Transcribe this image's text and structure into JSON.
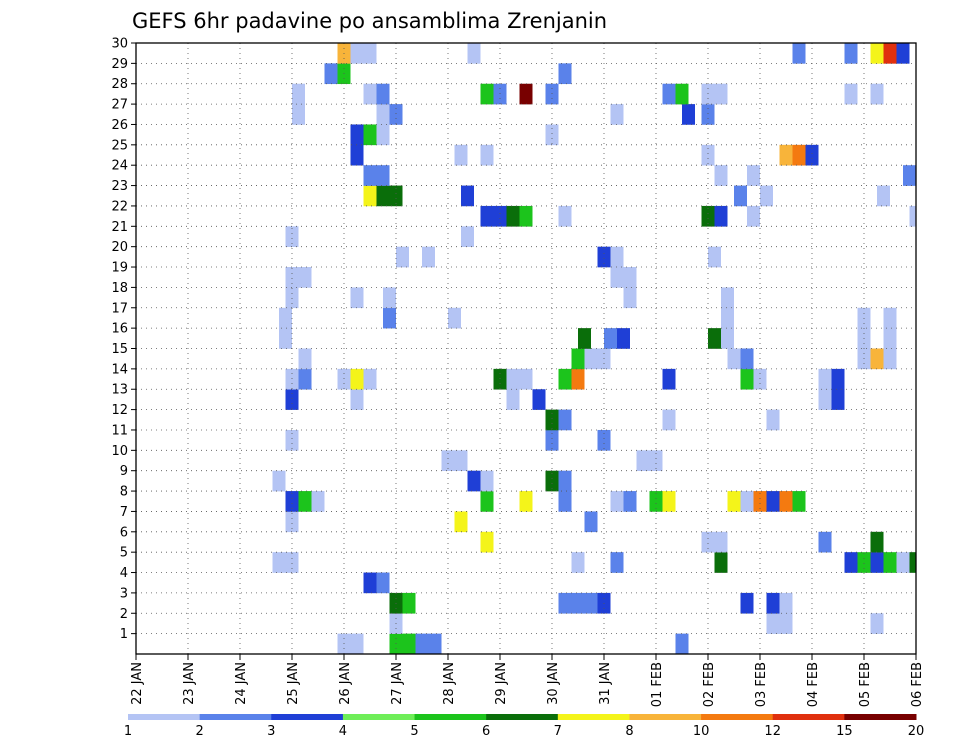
{
  "chart_data": {
    "type": "heatmap",
    "title": "GEFS 6hr padavine po ansamblima Zrenjanin",
    "x_tick_labels": [
      "22 JAN",
      "23 JAN",
      "24 JAN",
      "25 JAN",
      "26 JAN",
      "27 JAN",
      "28 JAN",
      "29 JAN",
      "30 JAN",
      "31 JAN",
      "01 FEB",
      "02 FEB",
      "03 FEB",
      "04 FEB",
      "05 FEB",
      "06 FEB"
    ],
    "y_tick_labels": [
      "1",
      "2",
      "3",
      "4",
      "5",
      "6",
      "7",
      "8",
      "9",
      "10",
      "11",
      "12",
      "13",
      "14",
      "15",
      "16",
      "17",
      "18",
      "19",
      "20",
      "21",
      "22",
      "23",
      "24",
      "25",
      "26",
      "27",
      "28",
      "29",
      "30"
    ],
    "x_unit": "6-hour step from 22 JAN 00Z",
    "y_unit": "ensemble member",
    "xlim": [
      0,
      60
    ],
    "ylim": [
      0,
      30
    ],
    "grid": true,
    "colorbar": {
      "labels": [
        "1",
        "2",
        "3",
        "4",
        "5",
        "6",
        "7",
        "8",
        "10",
        "12",
        "15",
        "20"
      ],
      "colors": [
        "#b4c4f4",
        "#5a82ea",
        "#1f3fd6",
        "#6eee58",
        "#1cc41c",
        "#0a6e0a",
        "#f4f41a",
        "#f8b43a",
        "#f47a10",
        "#e0300e",
        "#780000"
      ]
    },
    "cells": [
      {
        "x": 15.5,
        "y": 0,
        "c": 1
      },
      {
        "x": 16.5,
        "y": 0,
        "c": 1
      },
      {
        "x": 19.5,
        "y": 0,
        "c": 5
      },
      {
        "x": 20.5,
        "y": 0,
        "c": 5
      },
      {
        "x": 21.5,
        "y": 0,
        "c": 2
      },
      {
        "x": 22.5,
        "y": 0,
        "c": 2
      },
      {
        "x": 41.5,
        "y": 0,
        "c": 2
      },
      {
        "x": 19.5,
        "y": 1,
        "c": 1
      },
      {
        "x": 48.5,
        "y": 1,
        "c": 1
      },
      {
        "x": 56.5,
        "y": 1,
        "c": 1
      },
      {
        "x": 49.5,
        "y": 1,
        "c": 1
      },
      {
        "x": 19.5,
        "y": 2,
        "c": 6
      },
      {
        "x": 20.5,
        "y": 2,
        "c": 5
      },
      {
        "x": 32.5,
        "y": 2,
        "c": 2
      },
      {
        "x": 33.5,
        "y": 2,
        "c": 2
      },
      {
        "x": 34.5,
        "y": 2,
        "c": 2
      },
      {
        "x": 35.5,
        "y": 2,
        "c": 3
      },
      {
        "x": 46.5,
        "y": 2,
        "c": 3
      },
      {
        "x": 48.5,
        "y": 2,
        "c": 3
      },
      {
        "x": 49.5,
        "y": 2,
        "c": 1
      },
      {
        "x": 17.5,
        "y": 3,
        "c": 3
      },
      {
        "x": 18.5,
        "y": 3,
        "c": 2
      },
      {
        "x": 10.5,
        "y": 4,
        "c": 1
      },
      {
        "x": 11.5,
        "y": 4,
        "c": 1
      },
      {
        "x": 33.5,
        "y": 4,
        "c": 1
      },
      {
        "x": 36.5,
        "y": 4,
        "c": 2
      },
      {
        "x": 44.5,
        "y": 4,
        "c": 6
      },
      {
        "x": 54.5,
        "y": 4,
        "c": 3
      },
      {
        "x": 55.5,
        "y": 4,
        "c": 5
      },
      {
        "x": 56.5,
        "y": 4,
        "c": 3
      },
      {
        "x": 57.5,
        "y": 4,
        "c": 5
      },
      {
        "x": 58.5,
        "y": 4,
        "c": 1
      },
      {
        "x": 59.5,
        "y": 4,
        "c": 6
      },
      {
        "x": 26.5,
        "y": 5,
        "c": 7
      },
      {
        "x": 43.5,
        "y": 5,
        "c": 1
      },
      {
        "x": 44.5,
        "y": 5,
        "c": 1
      },
      {
        "x": 52.5,
        "y": 5,
        "c": 2
      },
      {
        "x": 56.5,
        "y": 5,
        "c": 6
      },
      {
        "x": 11.5,
        "y": 6,
        "c": 1
      },
      {
        "x": 24.5,
        "y": 6,
        "c": 7
      },
      {
        "x": 34.5,
        "y": 6,
        "c": 2
      },
      {
        "x": 11.5,
        "y": 7,
        "c": 3
      },
      {
        "x": 12.5,
        "y": 7,
        "c": 5
      },
      {
        "x": 13.5,
        "y": 7,
        "c": 1
      },
      {
        "x": 26.5,
        "y": 7,
        "c": 5
      },
      {
        "x": 29.5,
        "y": 7,
        "c": 7
      },
      {
        "x": 32.5,
        "y": 7,
        "c": 2
      },
      {
        "x": 36.5,
        "y": 7,
        "c": 1
      },
      {
        "x": 37.5,
        "y": 7,
        "c": 2
      },
      {
        "x": 39.5,
        "y": 7,
        "c": 5
      },
      {
        "x": 40.5,
        "y": 7,
        "c": 7
      },
      {
        "x": 45.5,
        "y": 7,
        "c": 7
      },
      {
        "x": 46.5,
        "y": 7,
        "c": 1
      },
      {
        "x": 47.5,
        "y": 7,
        "c": 9
      },
      {
        "x": 48.5,
        "y": 7,
        "c": 3
      },
      {
        "x": 49.5,
        "y": 7,
        "c": 9
      },
      {
        "x": 50.5,
        "y": 7,
        "c": 5
      },
      {
        "x": 10.5,
        "y": 8,
        "c": 1
      },
      {
        "x": 25.5,
        "y": 8,
        "c": 3
      },
      {
        "x": 26.5,
        "y": 8,
        "c": 1
      },
      {
        "x": 31.5,
        "y": 8,
        "c": 6
      },
      {
        "x": 32.5,
        "y": 8,
        "c": 2
      },
      {
        "x": 23.5,
        "y": 9,
        "c": 1
      },
      {
        "x": 24.5,
        "y": 9,
        "c": 1
      },
      {
        "x": 38.5,
        "y": 9,
        "c": 1
      },
      {
        "x": 39.5,
        "y": 9,
        "c": 1
      },
      {
        "x": 11.5,
        "y": 10,
        "c": 1
      },
      {
        "x": 31.5,
        "y": 10,
        "c": 2
      },
      {
        "x": 35.5,
        "y": 10,
        "c": 2
      },
      {
        "x": 31.5,
        "y": 11,
        "c": 6
      },
      {
        "x": 32.5,
        "y": 11,
        "c": 2
      },
      {
        "x": 40.5,
        "y": 11,
        "c": 1
      },
      {
        "x": 48.5,
        "y": 11,
        "c": 1
      },
      {
        "x": 11.5,
        "y": 12,
        "c": 3
      },
      {
        "x": 16.5,
        "y": 12,
        "c": 1
      },
      {
        "x": 28.5,
        "y": 12,
        "c": 1
      },
      {
        "x": 30.5,
        "y": 12,
        "c": 3
      },
      {
        "x": 52.5,
        "y": 12,
        "c": 1
      },
      {
        "x": 53.5,
        "y": 12,
        "c": 3
      },
      {
        "x": 11.5,
        "y": 13,
        "c": 1
      },
      {
        "x": 12.5,
        "y": 13,
        "c": 2
      },
      {
        "x": 15.5,
        "y": 13,
        "c": 1
      },
      {
        "x": 16.5,
        "y": 13,
        "c": 7
      },
      {
        "x": 17.5,
        "y": 13,
        "c": 1
      },
      {
        "x": 27.5,
        "y": 13,
        "c": 6
      },
      {
        "x": 28.5,
        "y": 13,
        "c": 1
      },
      {
        "x": 29.5,
        "y": 13,
        "c": 1
      },
      {
        "x": 32.5,
        "y": 13,
        "c": 5
      },
      {
        "x": 33.5,
        "y": 13,
        "c": 9
      },
      {
        "x": 40.5,
        "y": 13,
        "c": 3
      },
      {
        "x": 46.5,
        "y": 13,
        "c": 5
      },
      {
        "x": 47.5,
        "y": 13,
        "c": 1
      },
      {
        "x": 52.5,
        "y": 13,
        "c": 1
      },
      {
        "x": 53.5,
        "y": 13,
        "c": 3
      },
      {
        "x": 12.5,
        "y": 14,
        "c": 1
      },
      {
        "x": 33.5,
        "y": 14,
        "c": 5
      },
      {
        "x": 34.5,
        "y": 14,
        "c": 1
      },
      {
        "x": 35.5,
        "y": 14,
        "c": 1
      },
      {
        "x": 45.5,
        "y": 14,
        "c": 1
      },
      {
        "x": 46.5,
        "y": 14,
        "c": 2
      },
      {
        "x": 55.5,
        "y": 14,
        "c": 1
      },
      {
        "x": 56.5,
        "y": 14,
        "c": 8
      },
      {
        "x": 57.5,
        "y": 14,
        "c": 1
      },
      {
        "x": 11,
        "y": 15,
        "c": 1
      },
      {
        "x": 34,
        "y": 15,
        "c": 6
      },
      {
        "x": 36,
        "y": 15,
        "c": 2
      },
      {
        "x": 37,
        "y": 15,
        "c": 3
      },
      {
        "x": 44,
        "y": 15,
        "c": 6
      },
      {
        "x": 45,
        "y": 15,
        "c": 1
      },
      {
        "x": 55.5,
        "y": 15,
        "c": 1
      },
      {
        "x": 57.5,
        "y": 15,
        "c": 1
      },
      {
        "x": 19,
        "y": 16,
        "c": 2
      },
      {
        "x": 24,
        "y": 16,
        "c": 1
      },
      {
        "x": 11,
        "y": 16,
        "c": 1
      },
      {
        "x": 45,
        "y": 16,
        "c": 1
      },
      {
        "x": 55.5,
        "y": 16,
        "c": 1
      },
      {
        "x": 57.5,
        "y": 16,
        "c": 1
      },
      {
        "x": 11.5,
        "y": 17,
        "c": 1
      },
      {
        "x": 16.5,
        "y": 17,
        "c": 1
      },
      {
        "x": 19,
        "y": 17,
        "c": 1
      },
      {
        "x": 37.5,
        "y": 17,
        "c": 1
      },
      {
        "x": 45,
        "y": 17,
        "c": 1
      },
      {
        "x": 11.5,
        "y": 18,
        "c": 1
      },
      {
        "x": 12.5,
        "y": 18,
        "c": 1
      },
      {
        "x": 36.5,
        "y": 18,
        "c": 1
      },
      {
        "x": 37.5,
        "y": 18,
        "c": 1
      },
      {
        "x": 35.5,
        "y": 19,
        "c": 3
      },
      {
        "x": 36.5,
        "y": 19,
        "c": 1
      },
      {
        "x": 44,
        "y": 19,
        "c": 1
      },
      {
        "x": 20,
        "y": 19,
        "c": 1
      },
      {
        "x": 22,
        "y": 19,
        "c": 1
      },
      {
        "x": 11.5,
        "y": 20,
        "c": 1
      },
      {
        "x": 25,
        "y": 20,
        "c": 1
      },
      {
        "x": 26.5,
        "y": 21,
        "c": 3
      },
      {
        "x": 27.5,
        "y": 21,
        "c": 3
      },
      {
        "x": 28.5,
        "y": 21,
        "c": 6
      },
      {
        "x": 29.5,
        "y": 21,
        "c": 5
      },
      {
        "x": 32.5,
        "y": 21,
        "c": 1
      },
      {
        "x": 43.5,
        "y": 21,
        "c": 6
      },
      {
        "x": 44.5,
        "y": 21,
        "c": 3
      },
      {
        "x": 47,
        "y": 21,
        "c": 1
      },
      {
        "x": 59.5,
        "y": 21,
        "c": 1
      },
      {
        "x": 17.5,
        "y": 22,
        "c": 7
      },
      {
        "x": 18.5,
        "y": 22,
        "c": 6
      },
      {
        "x": 19.5,
        "y": 22,
        "c": 6
      },
      {
        "x": 25,
        "y": 22,
        "c": 3
      },
      {
        "x": 46,
        "y": 22,
        "c": 2
      },
      {
        "x": 48,
        "y": 22,
        "c": 1
      },
      {
        "x": 57,
        "y": 22,
        "c": 1
      },
      {
        "x": 17.5,
        "y": 23,
        "c": 2
      },
      {
        "x": 18.5,
        "y": 23,
        "c": 2
      },
      {
        "x": 44.5,
        "y": 23,
        "c": 1
      },
      {
        "x": 47,
        "y": 23,
        "c": 1
      },
      {
        "x": 59,
        "y": 23,
        "c": 2
      },
      {
        "x": 16.5,
        "y": 24,
        "c": 3
      },
      {
        "x": 24.5,
        "y": 24,
        "c": 1
      },
      {
        "x": 26.5,
        "y": 24,
        "c": 1
      },
      {
        "x": 43.5,
        "y": 24,
        "c": 1
      },
      {
        "x": 49.5,
        "y": 24,
        "c": 8
      },
      {
        "x": 50.5,
        "y": 24,
        "c": 9
      },
      {
        "x": 51.5,
        "y": 24,
        "c": 3
      },
      {
        "x": 16.5,
        "y": 25,
        "c": 3
      },
      {
        "x": 17.5,
        "y": 25,
        "c": 5
      },
      {
        "x": 18.5,
        "y": 25,
        "c": 1
      },
      {
        "x": 31.5,
        "y": 25,
        "c": 1
      },
      {
        "x": 12,
        "y": 26,
        "c": 1
      },
      {
        "x": 18.5,
        "y": 26,
        "c": 1
      },
      {
        "x": 19.5,
        "y": 26,
        "c": 2
      },
      {
        "x": 36.5,
        "y": 26,
        "c": 1
      },
      {
        "x": 42,
        "y": 26,
        "c": 3
      },
      {
        "x": 43.5,
        "y": 26,
        "c": 2
      },
      {
        "x": 12,
        "y": 27,
        "c": 1
      },
      {
        "x": 17.5,
        "y": 27,
        "c": 1
      },
      {
        "x": 18.5,
        "y": 27,
        "c": 2
      },
      {
        "x": 26.5,
        "y": 27,
        "c": 5
      },
      {
        "x": 27.5,
        "y": 27,
        "c": 2
      },
      {
        "x": 29.5,
        "y": 27,
        "c": 11
      },
      {
        "x": 31.5,
        "y": 27,
        "c": 2
      },
      {
        "x": 40.5,
        "y": 27,
        "c": 2
      },
      {
        "x": 41.5,
        "y": 27,
        "c": 5
      },
      {
        "x": 43.5,
        "y": 27,
        "c": 1
      },
      {
        "x": 44.5,
        "y": 27,
        "c": 1
      },
      {
        "x": 54.5,
        "y": 27,
        "c": 1
      },
      {
        "x": 56.5,
        "y": 27,
        "c": 1
      },
      {
        "x": 14.5,
        "y": 28,
        "c": 2
      },
      {
        "x": 15.5,
        "y": 28,
        "c": 5
      },
      {
        "x": 32.5,
        "y": 28,
        "c": 2
      },
      {
        "x": 15.5,
        "y": 29,
        "c": 8
      },
      {
        "x": 16.5,
        "y": 29,
        "c": 1
      },
      {
        "x": 17.5,
        "y": 29,
        "c": 1
      },
      {
        "x": 25.5,
        "y": 29,
        "c": 1
      },
      {
        "x": 50.5,
        "y": 29,
        "c": 2
      },
      {
        "x": 54.5,
        "y": 29,
        "c": 2
      },
      {
        "x": 56.5,
        "y": 29,
        "c": 7
      },
      {
        "x": 57.5,
        "y": 29,
        "c": 10
      },
      {
        "x": 58.5,
        "y": 29,
        "c": 3
      }
    ]
  }
}
